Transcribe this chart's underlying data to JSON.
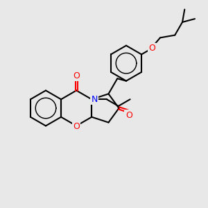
{
  "bg_color": "#e8e8e8",
  "bond_color": "#000000",
  "o_color": "#ff0000",
  "n_color": "#0000ff",
  "lw": 1.5,
  "figsize": [
    3.0,
    3.0
  ],
  "dpi": 100,
  "xlim": [
    0,
    10
  ],
  "ylim": [
    0,
    10
  ],
  "bl": 0.85
}
